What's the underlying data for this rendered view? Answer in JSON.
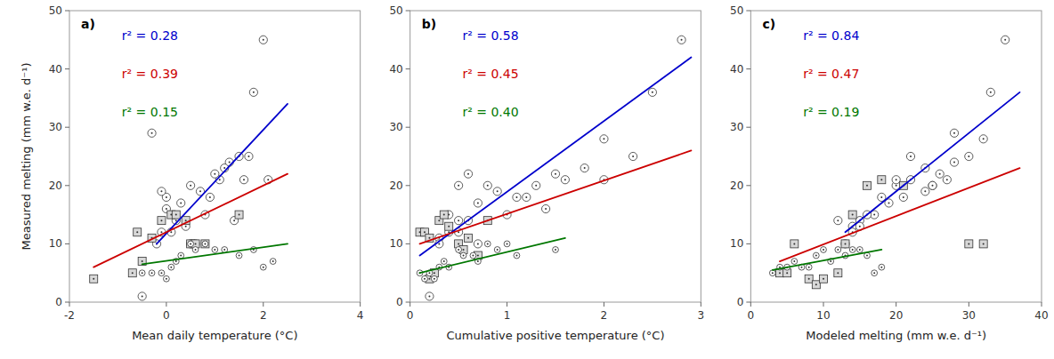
{
  "chart_data": [
    {
      "type": "scatter",
      "title": "a)",
      "xlabel": "Mean daily temperature (°C)",
      "ylabel": "Measured melting (mm w.e. d⁻¹)",
      "xlim": [
        -2,
        4
      ],
      "ylim": [
        0,
        50
      ],
      "xticks": [
        -2,
        0,
        2,
        4
      ],
      "yticks": [
        0,
        10,
        20,
        30,
        40,
        50
      ],
      "grid": false,
      "annotations": [
        {
          "text": "r² = 0.28",
          "color": "#0000CC"
        },
        {
          "text": "r² = 0.39",
          "color": "#CC0000"
        },
        {
          "text": "r² = 0.15",
          "color": "#007700"
        }
      ],
      "series": [
        {
          "marker": "circle",
          "color": "#ffffff",
          "x": [
            2.0,
            1.8,
            1.5,
            1.3,
            1.2,
            1.1,
            1.0,
            0.9,
            0.8,
            0.7,
            0.5,
            0.3,
            0.2,
            0.1,
            0.0,
            0.0,
            -0.1,
            -0.3,
            -0.5,
            0.5,
            2.1,
            1.7,
            1.6,
            1.4,
            0.6,
            0.4,
            -0.1,
            -0.2
          ],
          "values": [
            45,
            36,
            25,
            24,
            23,
            21,
            22,
            18,
            15,
            19,
            20,
            17,
            14,
            12,
            18,
            16,
            19,
            29,
            1,
            10,
            21,
            25,
            21,
            14,
            10,
            13,
            12,
            10
          ]
        },
        {
          "marker": "square",
          "color": "#d8d8d8",
          "x": [
            -1.5,
            -0.7,
            -0.6,
            -0.5,
            -0.3,
            -0.1,
            0.1,
            0.2,
            0.4,
            0.5,
            0.6,
            0.8,
            1.5
          ],
          "values": [
            4,
            5,
            12,
            7,
            11,
            14,
            15,
            15,
            14,
            10,
            10,
            10,
            15
          ]
        },
        {
          "marker": "small-circle",
          "color": "#ffffff",
          "x": [
            2.2,
            2.0,
            1.8,
            1.5,
            1.2,
            1.0,
            0.8,
            0.6,
            0.3,
            0.1,
            -0.1,
            -0.3,
            -0.5,
            0.0,
            0.2,
            0.5
          ],
          "values": [
            7,
            6,
            9,
            8,
            9,
            9,
            10,
            9,
            8,
            6,
            5,
            5,
            5,
            4,
            7,
            10
          ]
        },
        {
          "type": "line",
          "color": "#0000CC",
          "x": [
            -0.2,
            2.5
          ],
          "values": [
            10,
            34
          ]
        },
        {
          "type": "line",
          "color": "#CC0000",
          "x": [
            -1.5,
            2.5
          ],
          "values": [
            6,
            22
          ]
        },
        {
          "type": "line",
          "color": "#007700",
          "x": [
            -0.5,
            2.5
          ],
          "values": [
            6.5,
            10
          ]
        }
      ]
    },
    {
      "type": "scatter",
      "title": "b)",
      "xlabel": "Cumulative positive temperature (°C)",
      "xlim": [
        0,
        3
      ],
      "ylim": [
        0,
        50
      ],
      "xticks": [
        0,
        1,
        2,
        3
      ],
      "yticks": [
        0,
        10,
        20,
        30,
        40,
        50
      ],
      "grid": false,
      "annotations": [
        {
          "text": "r² = 0.58",
          "color": "#0000CC"
        },
        {
          "text": "r² = 0.45",
          "color": "#CC0000"
        },
        {
          "text": "r² = 0.40",
          "color": "#007700"
        }
      ],
      "series": [
        {
          "marker": "circle",
          "color": "#ffffff",
          "x": [
            2.8,
            2.5,
            2.3,
            2.0,
            1.8,
            1.6,
            1.5,
            1.3,
            1.2,
            1.1,
            1.0,
            0.9,
            0.8,
            0.7,
            0.6,
            0.5,
            0.4,
            0.3,
            0.2,
            0.7,
            2.0,
            0.6,
            0.5,
            1.4,
            0.5,
            0.4,
            0.3
          ],
          "values": [
            45,
            36,
            25,
            28,
            23,
            21,
            22,
            20,
            18,
            18,
            15,
            19,
            20,
            17,
            14,
            12,
            15,
            11,
            1,
            10,
            21,
            22,
            20,
            16,
            14,
            12,
            10
          ]
        },
        {
          "marker": "square",
          "color": "#d8d8d8",
          "x": [
            0.1,
            0.15,
            0.2,
            0.2,
            0.25,
            0.3,
            0.35,
            0.4,
            0.5,
            0.55,
            0.6,
            0.7,
            0.8
          ],
          "values": [
            12,
            12,
            11,
            4,
            5,
            14,
            15,
            13,
            10,
            9,
            11,
            8,
            14
          ]
        },
        {
          "marker": "small-circle",
          "color": "#ffffff",
          "x": [
            0.1,
            0.15,
            0.2,
            0.25,
            0.3,
            0.35,
            0.4,
            0.5,
            0.55,
            0.65,
            0.7,
            0.8,
            0.9,
            1.0,
            1.1,
            1.5
          ],
          "values": [
            5,
            4,
            5,
            4,
            6,
            7,
            6,
            9,
            8,
            8,
            7,
            10,
            9,
            10,
            8,
            9
          ]
        },
        {
          "type": "line",
          "color": "#0000CC",
          "x": [
            0.1,
            2.9
          ],
          "values": [
            8,
            42
          ]
        },
        {
          "type": "line",
          "color": "#CC0000",
          "x": [
            0.1,
            2.9
          ],
          "values": [
            10,
            26
          ]
        },
        {
          "type": "line",
          "color": "#007700",
          "x": [
            0.1,
            1.6
          ],
          "values": [
            5,
            11
          ]
        }
      ]
    },
    {
      "type": "scatter",
      "title": "c)",
      "xlabel": "Modeled melting (mm w.e. d⁻¹)",
      "xlim": [
        0,
        40
      ],
      "ylim": [
        0,
        50
      ],
      "xticks": [
        0,
        10,
        20,
        30,
        40
      ],
      "yticks": [
        0,
        10,
        20,
        30,
        40,
        50
      ],
      "grid": false,
      "annotations": [
        {
          "text": "r² = 0.84",
          "color": "#0000CC"
        },
        {
          "text": "r² = 0.47",
          "color": "#CC0000"
        },
        {
          "text": "r² = 0.19",
          "color": "#007700"
        }
      ],
      "series": [
        {
          "marker": "circle",
          "color": "#ffffff",
          "x": [
            35,
            33,
            32,
            30,
            28,
            27,
            26,
            25,
            24,
            22,
            21,
            20,
            19,
            18,
            17,
            16,
            15,
            14,
            13,
            22,
            24,
            20,
            25,
            28,
            12,
            14,
            15
          ],
          "values": [
            45,
            36,
            28,
            25,
            24,
            21,
            22,
            20,
            19,
            21,
            18,
            20,
            17,
            18,
            15,
            15,
            14,
            13,
            10,
            25,
            23,
            21,
            20,
            29,
            14,
            12,
            13
          ]
        },
        {
          "marker": "square",
          "color": "#d8d8d8",
          "x": [
            4,
            5,
            6,
            8,
            9,
            10,
            12,
            13,
            14,
            16,
            18,
            21,
            30,
            32
          ],
          "values": [
            5,
            5,
            10,
            4,
            3,
            4,
            5,
            10,
            15,
            20,
            21,
            20,
            10,
            10
          ]
        },
        {
          "marker": "small-circle",
          "color": "#ffffff",
          "x": [
            3,
            4,
            5,
            6,
            7,
            8,
            9,
            10,
            11,
            12,
            13,
            14,
            15,
            16,
            17,
            18
          ],
          "values": [
            5,
            6,
            6,
            7,
            6,
            6,
            8,
            9,
            7,
            9,
            8,
            9,
            9,
            8,
            5,
            6
          ]
        },
        {
          "type": "line",
          "color": "#0000CC",
          "x": [
            13,
            37
          ],
          "values": [
            12,
            36
          ]
        },
        {
          "type": "line",
          "color": "#CC0000",
          "x": [
            4,
            37
          ],
          "values": [
            7,
            23
          ]
        },
        {
          "type": "line",
          "color": "#007700",
          "x": [
            3,
            18
          ],
          "values": [
            5.5,
            9
          ]
        }
      ]
    }
  ]
}
